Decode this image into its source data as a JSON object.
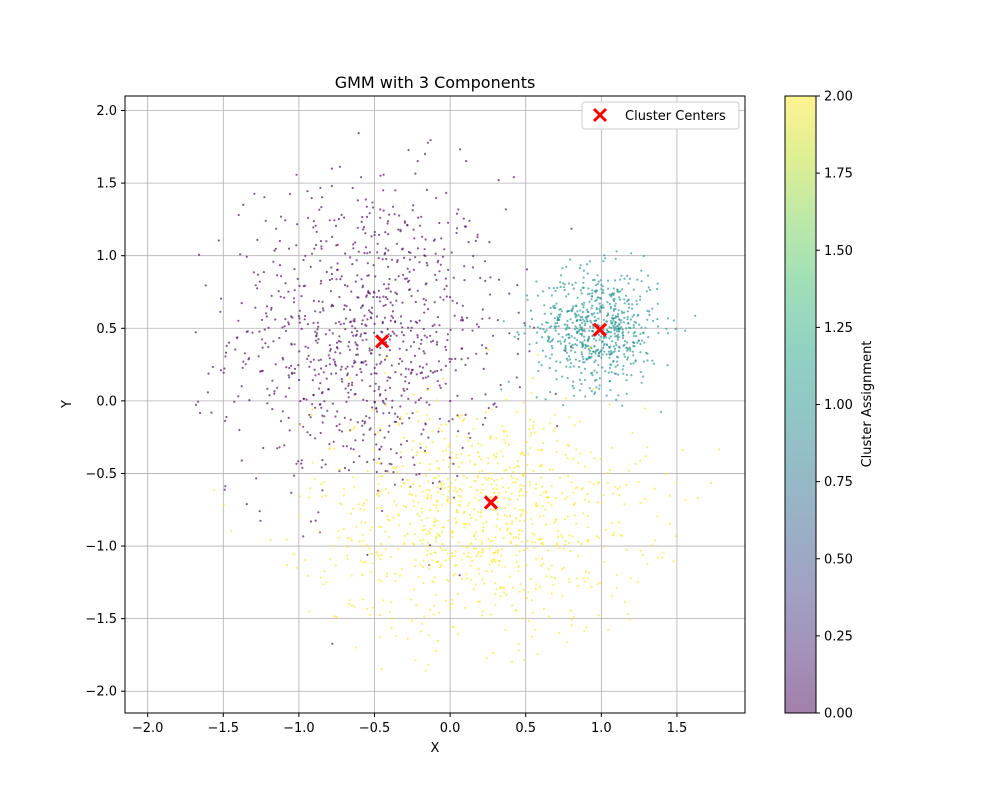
{
  "chart_data": {
    "type": "scatter",
    "title": "GMM with 3 Components",
    "xlabel": "X",
    "ylabel": "Y",
    "xlim": [
      -2.15,
      1.95
    ],
    "ylim": [
      -2.15,
      2.1
    ],
    "xticks": [
      -2.0,
      -1.5,
      -1.0,
      -0.5,
      0.0,
      0.5,
      1.0,
      1.5
    ],
    "xtick_labels": [
      "−2.0",
      "−1.5",
      "−1.0",
      "−0.5",
      "0.0",
      "0.5",
      "1.0",
      "1.5"
    ],
    "yticks": [
      -2.0,
      -1.5,
      -1.0,
      -0.5,
      0.0,
      0.5,
      1.0,
      1.5,
      2.0
    ],
    "ytick_labels": [
      "−2.0",
      "−1.5",
      "−1.0",
      "−0.5",
      "0.0",
      "0.5",
      "1.0",
      "1.5",
      "2.0"
    ],
    "grid": true,
    "legend": {
      "position": "top-right",
      "entries": [
        "Cluster Centers"
      ]
    },
    "clusters": [
      {
        "assignment": 0,
        "color": "#440154",
        "center": [
          -0.55,
          0.45
        ],
        "spread": [
          0.45,
          0.55
        ],
        "count": 950
      },
      {
        "assignment": 1,
        "color": "#21918c",
        "center": [
          0.98,
          0.5
        ],
        "spread": [
          0.2,
          0.2
        ],
        "count": 700
      },
      {
        "assignment": 2,
        "color": "#fde725",
        "center": [
          0.2,
          -0.8
        ],
        "spread": [
          0.55,
          0.4
        ],
        "count": 950
      }
    ],
    "disc_radius": 1.95,
    "cluster_centers": {
      "name": "Cluster Centers",
      "color": "#ff0000",
      "marker": "x",
      "points": [
        {
          "x": -0.45,
          "y": 0.41
        },
        {
          "x": 0.99,
          "y": 0.49
        },
        {
          "x": 0.27,
          "y": -0.7
        }
      ]
    },
    "colorbar": {
      "label": "Cluster Assignment",
      "range": [
        0.0,
        2.0
      ],
      "ticks": [
        "0.00",
        "0.25",
        "0.50",
        "0.75",
        "1.00",
        "1.25",
        "1.50",
        "1.75",
        "2.00"
      ],
      "colors": [
        "#440154",
        "#482475",
        "#414487",
        "#355f8d",
        "#2a788e",
        "#21918c",
        "#22a884",
        "#44bf70",
        "#7ad151",
        "#bddf26",
        "#fde725"
      ],
      "alpha": 0.5
    }
  }
}
